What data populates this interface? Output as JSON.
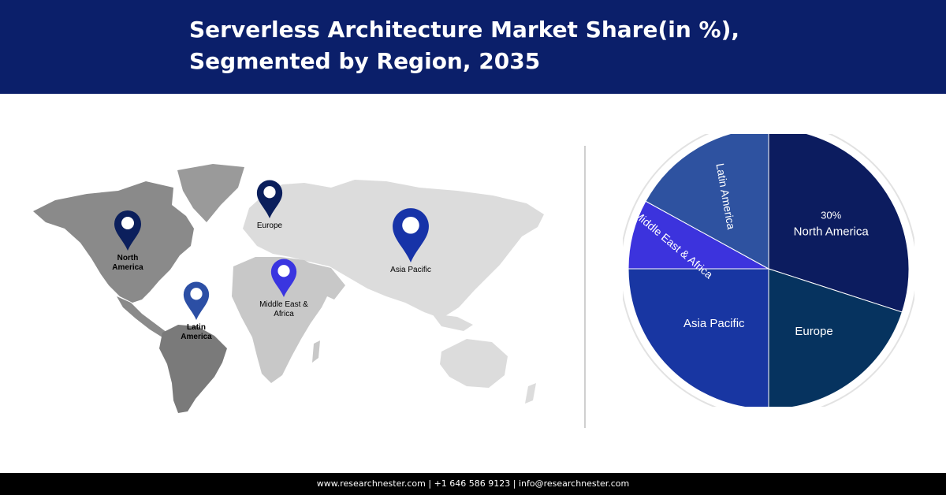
{
  "header": {
    "title": "Serverless Architecture Market Share(in %),\n Segmented by Region, 2035"
  },
  "map": {
    "pins": [
      {
        "name": "north-america",
        "label_lines": [
          "North",
          "America"
        ],
        "color": "#0b1f5c"
      },
      {
        "name": "europe",
        "label_lines": [
          "Europe"
        ],
        "color": "#0b1f5c"
      },
      {
        "name": "asia-pacific",
        "label_lines": [
          "Asia Pacific"
        ],
        "color": "#1733a8"
      },
      {
        "name": "middle-east-africa",
        "label_lines": [
          "Middle East &",
          "Africa"
        ],
        "color": "#3a35e0"
      },
      {
        "name": "latin-america",
        "label_lines": [
          "Latin",
          "America"
        ],
        "color": "#2c4fa5"
      }
    ],
    "land_colors": {
      "americas": "#8a8a8a",
      "greenland": "#9a9a9a",
      "eurasia": "#dcdcdc",
      "africa": "#c8c8c8",
      "oceania": "#dcdcdc"
    }
  },
  "chart_data": {
    "type": "pie",
    "title": "Serverless Architecture Market Share(in %), Segmented by Region, 2035",
    "slices": [
      {
        "label": "North America",
        "value": 30,
        "value_label": "30%",
        "color": "#0c1c5f"
      },
      {
        "label": "Europe",
        "value": 20,
        "value_label": "",
        "color": "#06335f"
      },
      {
        "label": "Asia Pacific",
        "value": 25,
        "value_label": "",
        "color": "#1836a2"
      },
      {
        "label": "Middle East & Africa",
        "value": 8,
        "value_label": "",
        "color": "#3c33dd"
      },
      {
        "label": "Latin America",
        "value": 17,
        "value_label": "",
        "color": "#2e52a0"
      }
    ]
  },
  "footer": {
    "text": "www.researchnester.com  | +1 646 586 9123 | info@researchnester.com"
  }
}
